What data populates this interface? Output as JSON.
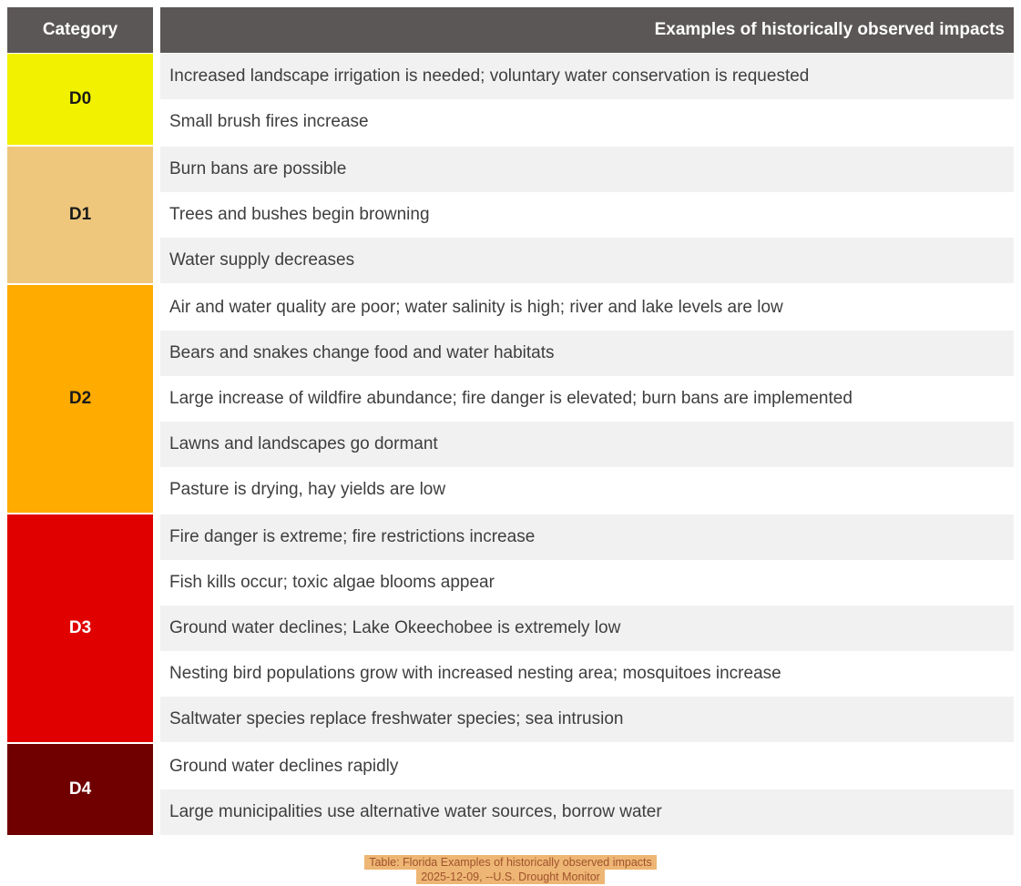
{
  "chart_data": {
    "type": "table",
    "title": "Florida Examples of historically observed impacts",
    "columns": [
      "Category",
      "Examples of historically observed impacts"
    ],
    "sections": [
      {
        "category": "D0",
        "swatch_color": "#F2F200",
        "label_color": "#1A1A1A",
        "impacts": [
          "Increased landscape irrigation is needed; voluntary water conservation is requested",
          "Small brush fires increase"
        ]
      },
      {
        "category": "D1",
        "swatch_color": "#EEC77C",
        "label_color": "#1A1A1A",
        "impacts": [
          "Burn bans are possible",
          "Trees and bushes begin browning",
          "Water supply decreases"
        ]
      },
      {
        "category": "D2",
        "swatch_color": "#FFAB00",
        "label_color": "#1A1A1A",
        "impacts": [
          "Air and water quality are poor; water salinity is high; river and lake levels are low",
          "Bears and snakes change food and water habitats",
          "Large increase of wildfire abundance; fire danger is elevated; burn bans are implemented",
          "Lawns and landscapes go dormant",
          "Pasture is drying, hay yields are low"
        ]
      },
      {
        "category": "D3",
        "swatch_color": "#E00000",
        "label_color": "#FFFFFF",
        "impacts": [
          "Fire danger is extreme; fire restrictions increase",
          "Fish kills occur; toxic algae blooms appear",
          "Ground water declines; Lake Okeechobee is extremely low",
          "Nesting bird populations grow with increased nesting area; mosquitoes increase",
          "Saltwater species replace freshwater species; sea intrusion"
        ]
      },
      {
        "category": "D4",
        "swatch_color": "#700000",
        "label_color": "#FFFFFF",
        "impacts": [
          "Ground water declines rapidly",
          "Large municipalities use alternative water sources, borrow water"
        ]
      }
    ]
  },
  "header": {
    "category_label": "Category",
    "impacts_label": "Examples of historically observed impacts"
  },
  "caption": {
    "line1": "Table: Florida Examples of historically observed impacts",
    "line2": "2025-12-09, --U.S. Drought Monitor"
  },
  "colors": {
    "header_bg": "#5B5756",
    "header_text": "#FFFFFF",
    "row_stripe": "#F1F1F1",
    "row_plain": "#FFFFFF",
    "impact_text": "#3E3E3E",
    "caption_highlight": "#EEB674",
    "caption_text": "#A0522D"
  }
}
